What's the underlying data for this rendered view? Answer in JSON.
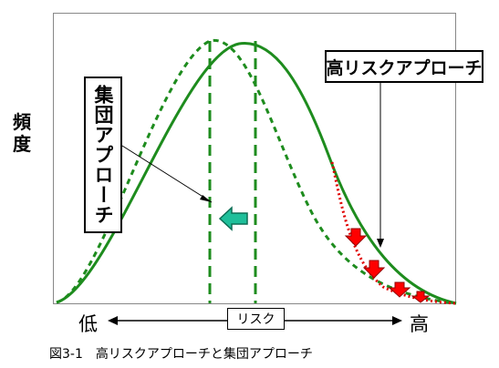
{
  "figure": {
    "y_axis_label": "頻度",
    "low_label": "低",
    "high_label": "高",
    "risk_label": "リスク",
    "population_approach_label": "集団アプローチ",
    "high_risk_approach_label": "高リスクアプローチ",
    "caption": "図3-1　高リスクアプローチと集団アプローチ"
  },
  "colors": {
    "curve_green": "#1e8c1e",
    "red_dotted": "#e00000",
    "shift_arrow": "#1fbf9a",
    "down_arrow": "#ff0000"
  },
  "icons": {
    "shift_arrow": "left-arrow-icon",
    "down_arrows": "down-arrow-icon"
  }
}
